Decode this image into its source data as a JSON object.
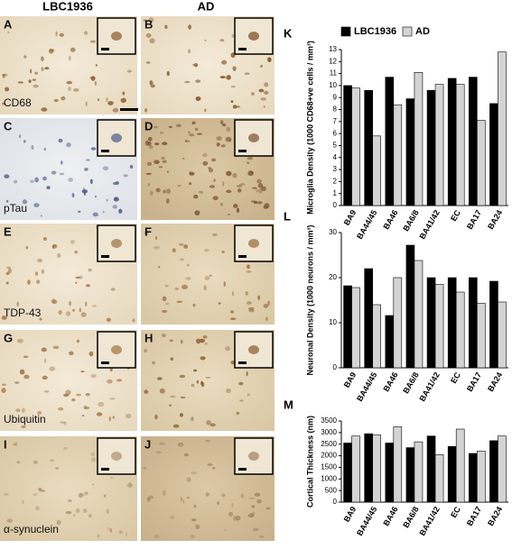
{
  "figure": {
    "columns": [
      "LBC1936",
      "AD"
    ],
    "panels": [
      {
        "label": "A",
        "stain": "CD68"
      },
      {
        "label": "B"
      },
      {
        "label": "C",
        "stain": "pTau"
      },
      {
        "label": "D"
      },
      {
        "label": "E",
        "stain": "TDP-43"
      },
      {
        "label": "F"
      },
      {
        "label": "G",
        "stain": "Ubiquitin"
      },
      {
        "label": "H"
      },
      {
        "label": "I",
        "stain": "α-synuclein"
      },
      {
        "label": "J"
      }
    ]
  },
  "chart_data": [
    {
      "type": "bar",
      "panel_label": "K",
      "y_label": "Microglia Density (1000 CD68+ve cells / mm³)",
      "legend": true,
      "categories": [
        "BA9",
        "BA44/45",
        "BA46",
        "BA6/8",
        "BA41/42",
        "EC",
        "BA17",
        "BA24"
      ],
      "series": [
        {
          "name": "LBC1936",
          "color": "#000000",
          "values": [
            10.0,
            9.6,
            10.7,
            8.9,
            9.6,
            10.6,
            10.7,
            8.5
          ]
        },
        {
          "name": "AD",
          "color": "#d4d4d4",
          "values": [
            9.8,
            5.8,
            8.4,
            11.1,
            10.1,
            10.1,
            7.1,
            12.8
          ]
        }
      ],
      "ylim": [
        0,
        13
      ],
      "yticks": [
        0,
        1,
        2,
        3,
        4,
        5,
        6,
        7,
        8,
        9,
        10,
        11,
        12,
        13
      ]
    },
    {
      "type": "bar",
      "panel_label": "L",
      "y_label": "Neuronal Density (1000 neurons / mm³)",
      "categories": [
        "BA9",
        "BA44/45",
        "BA46",
        "BA6/8",
        "BA41/42",
        "EC",
        "BA17",
        "BA24"
      ],
      "series": [
        {
          "color": "#000000",
          "values": [
            18.2,
            22.0,
            11.6,
            27.2,
            20.0,
            20.0,
            20.0,
            19.2
          ]
        },
        {
          "color": "#d4d4d4",
          "values": [
            17.8,
            14.0,
            20.0,
            23.8,
            18.5,
            16.8,
            14.3,
            14.6
          ]
        }
      ],
      "ylim": [
        0,
        30
      ],
      "yticks": [
        0,
        10,
        20,
        30
      ]
    },
    {
      "type": "bar",
      "panel_label": "M",
      "y_label": "Cortical Thickness (nm)",
      "categories": [
        "BA9",
        "BA44/45",
        "BA46",
        "BA6/8",
        "BA41/42",
        "EC",
        "BA17",
        "BA24"
      ],
      "series": [
        {
          "color": "#000000",
          "values": [
            2550,
            2950,
            2550,
            2350,
            2850,
            2400,
            2100,
            2650
          ]
        },
        {
          "color": "#d4d4d4",
          "values": [
            2850,
            2900,
            3250,
            2600,
            2050,
            3150,
            2200,
            2850
          ]
        }
      ],
      "ylim": [
        0,
        3500
      ],
      "yticks": [
        0,
        500,
        1000,
        1500,
        2000,
        2500,
        3000,
        3500
      ]
    }
  ]
}
